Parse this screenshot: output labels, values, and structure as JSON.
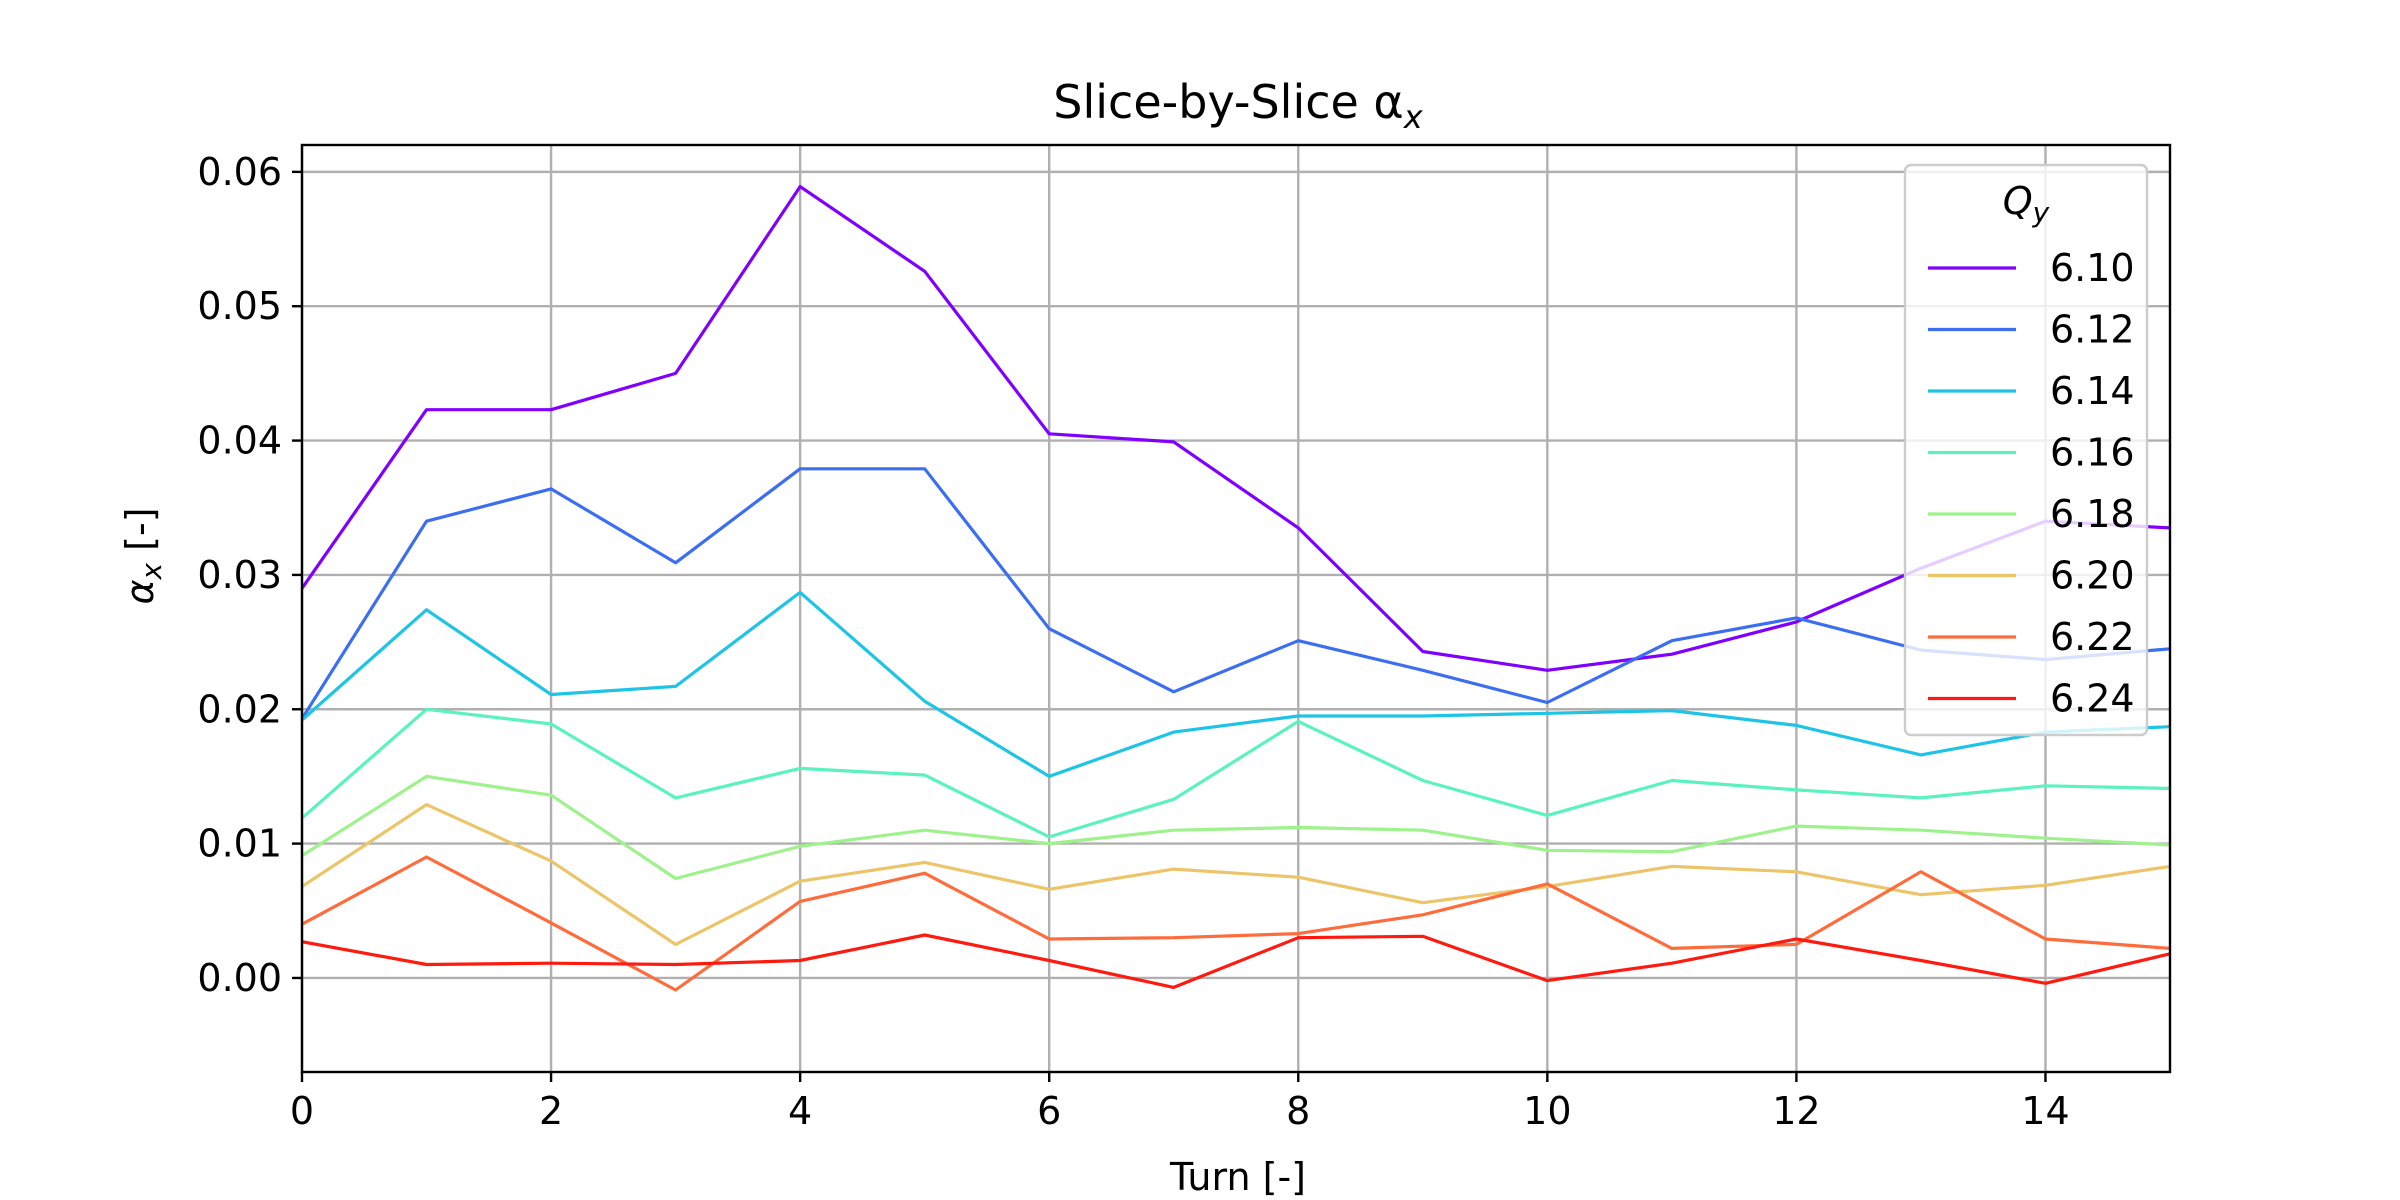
{
  "chart_data": {
    "type": "line",
    "title": "Slice-by-Slice α",
    "title_subscript": "x",
    "xlabel": "Turn [-]",
    "ylabel": "α",
    "ylabel_subscript": "x",
    "ylabel_suffix": " [-]",
    "xlim": [
      0,
      15
    ],
    "ylim": [
      -0.007,
      0.062
    ],
    "x_ticks": [
      0,
      2,
      4,
      6,
      8,
      10,
      12,
      14
    ],
    "x_tick_labels": [
      "0",
      "2",
      "4",
      "6",
      "8",
      "10",
      "12",
      "14"
    ],
    "y_ticks": [
      0.0,
      0.01,
      0.02,
      0.03,
      0.04,
      0.05,
      0.06
    ],
    "y_tick_labels": [
      "0.00",
      "0.01",
      "0.02",
      "0.03",
      "0.04",
      "0.05",
      "0.06"
    ],
    "grid": true,
    "legend": {
      "title": "Q",
      "title_subscript": "y",
      "placement": "upper-right"
    },
    "x": [
      0,
      1,
      2,
      3,
      4,
      5,
      6,
      7,
      8,
      9,
      10,
      11,
      12,
      13,
      14,
      15
    ],
    "series": [
      {
        "name": "6.10",
        "color": "#8000ff",
        "values": [
          0.029,
          0.0423,
          0.0423,
          0.045,
          0.0589,
          0.0526,
          0.0405,
          0.0399,
          0.0335,
          0.0243,
          0.0229,
          0.0241,
          0.0265,
          0.0305,
          0.034,
          0.0335
        ]
      },
      {
        "name": "6.12",
        "color": "#3b6ef0",
        "values": [
          0.0193,
          0.034,
          0.0364,
          0.0309,
          0.0379,
          0.0379,
          0.026,
          0.0213,
          0.0251,
          0.0229,
          0.0205,
          0.0251,
          0.0268,
          0.0244,
          0.0237,
          0.0245
        ]
      },
      {
        "name": "6.14",
        "color": "#1ec4e5",
        "values": [
          0.0192,
          0.0274,
          0.0211,
          0.0217,
          0.0287,
          0.0206,
          0.015,
          0.0183,
          0.0195,
          0.0195,
          0.0197,
          0.0199,
          0.0188,
          0.0166,
          0.0183,
          0.0187
        ]
      },
      {
        "name": "6.16",
        "color": "#5af2c0",
        "values": [
          0.0119,
          0.02,
          0.0189,
          0.0134,
          0.0156,
          0.0151,
          0.0105,
          0.0133,
          0.0191,
          0.0147,
          0.0121,
          0.0147,
          0.014,
          0.0134,
          0.0143,
          0.0141
        ]
      },
      {
        "name": "6.18",
        "color": "#9ef28c",
        "values": [
          0.0091,
          0.015,
          0.0136,
          0.0074,
          0.0098,
          0.011,
          0.01,
          0.011,
          0.0112,
          0.011,
          0.0095,
          0.0094,
          0.0113,
          0.011,
          0.0104,
          0.0099
        ]
      },
      {
        "name": "6.20",
        "color": "#ecc56a",
        "values": [
          0.0068,
          0.0129,
          0.0087,
          0.0025,
          0.0072,
          0.0086,
          0.0066,
          0.0081,
          0.0075,
          0.0056,
          0.0068,
          0.0083,
          0.0079,
          0.0062,
          0.0069,
          0.0083
        ]
      },
      {
        "name": "6.22",
        "color": "#ff6c3c",
        "values": [
          0.004,
          0.009,
          0.0041,
          -0.0009,
          0.0057,
          0.0078,
          0.0029,
          0.003,
          0.0033,
          0.0047,
          0.007,
          0.0022,
          0.0025,
          0.0079,
          0.0029,
          0.0022
        ]
      },
      {
        "name": "6.24",
        "color": "#ff1a10",
        "values": [
          0.0027,
          0.001,
          0.0011,
          0.001,
          0.0013,
          0.0032,
          0.0013,
          -0.0007,
          0.003,
          0.0031,
          -0.0002,
          0.0011,
          0.0029,
          0.0013,
          -0.0004,
          0.0018
        ]
      }
    ]
  }
}
